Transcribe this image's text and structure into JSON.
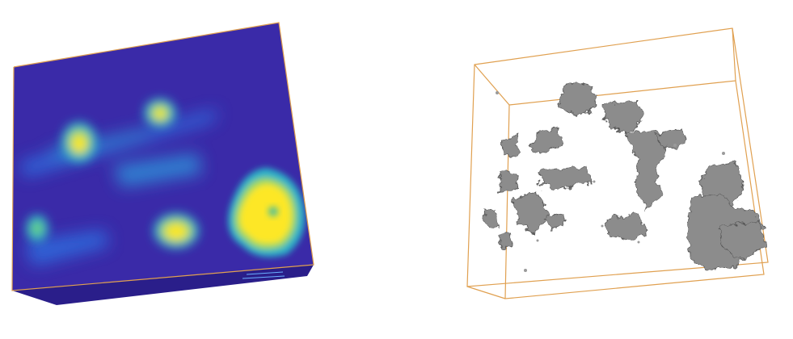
{
  "panels": [
    {
      "name": "density-volume-render",
      "style": "colormap-heatmap"
    },
    {
      "name": "isosurface-render",
      "style": "grey-isosurface"
    }
  ],
  "colors": {
    "background": "#ffffff",
    "bounding_box": "#e0a050",
    "volume_base": "#3a2aa8",
    "volume_mid": "#2e8fd8",
    "volume_hot": "#fde725",
    "surface": "#8a8a8a"
  },
  "colormap": [
    "#3b2aa8",
    "#2e6fe0",
    "#29b3c8",
    "#6ed36a",
    "#fde725"
  ]
}
